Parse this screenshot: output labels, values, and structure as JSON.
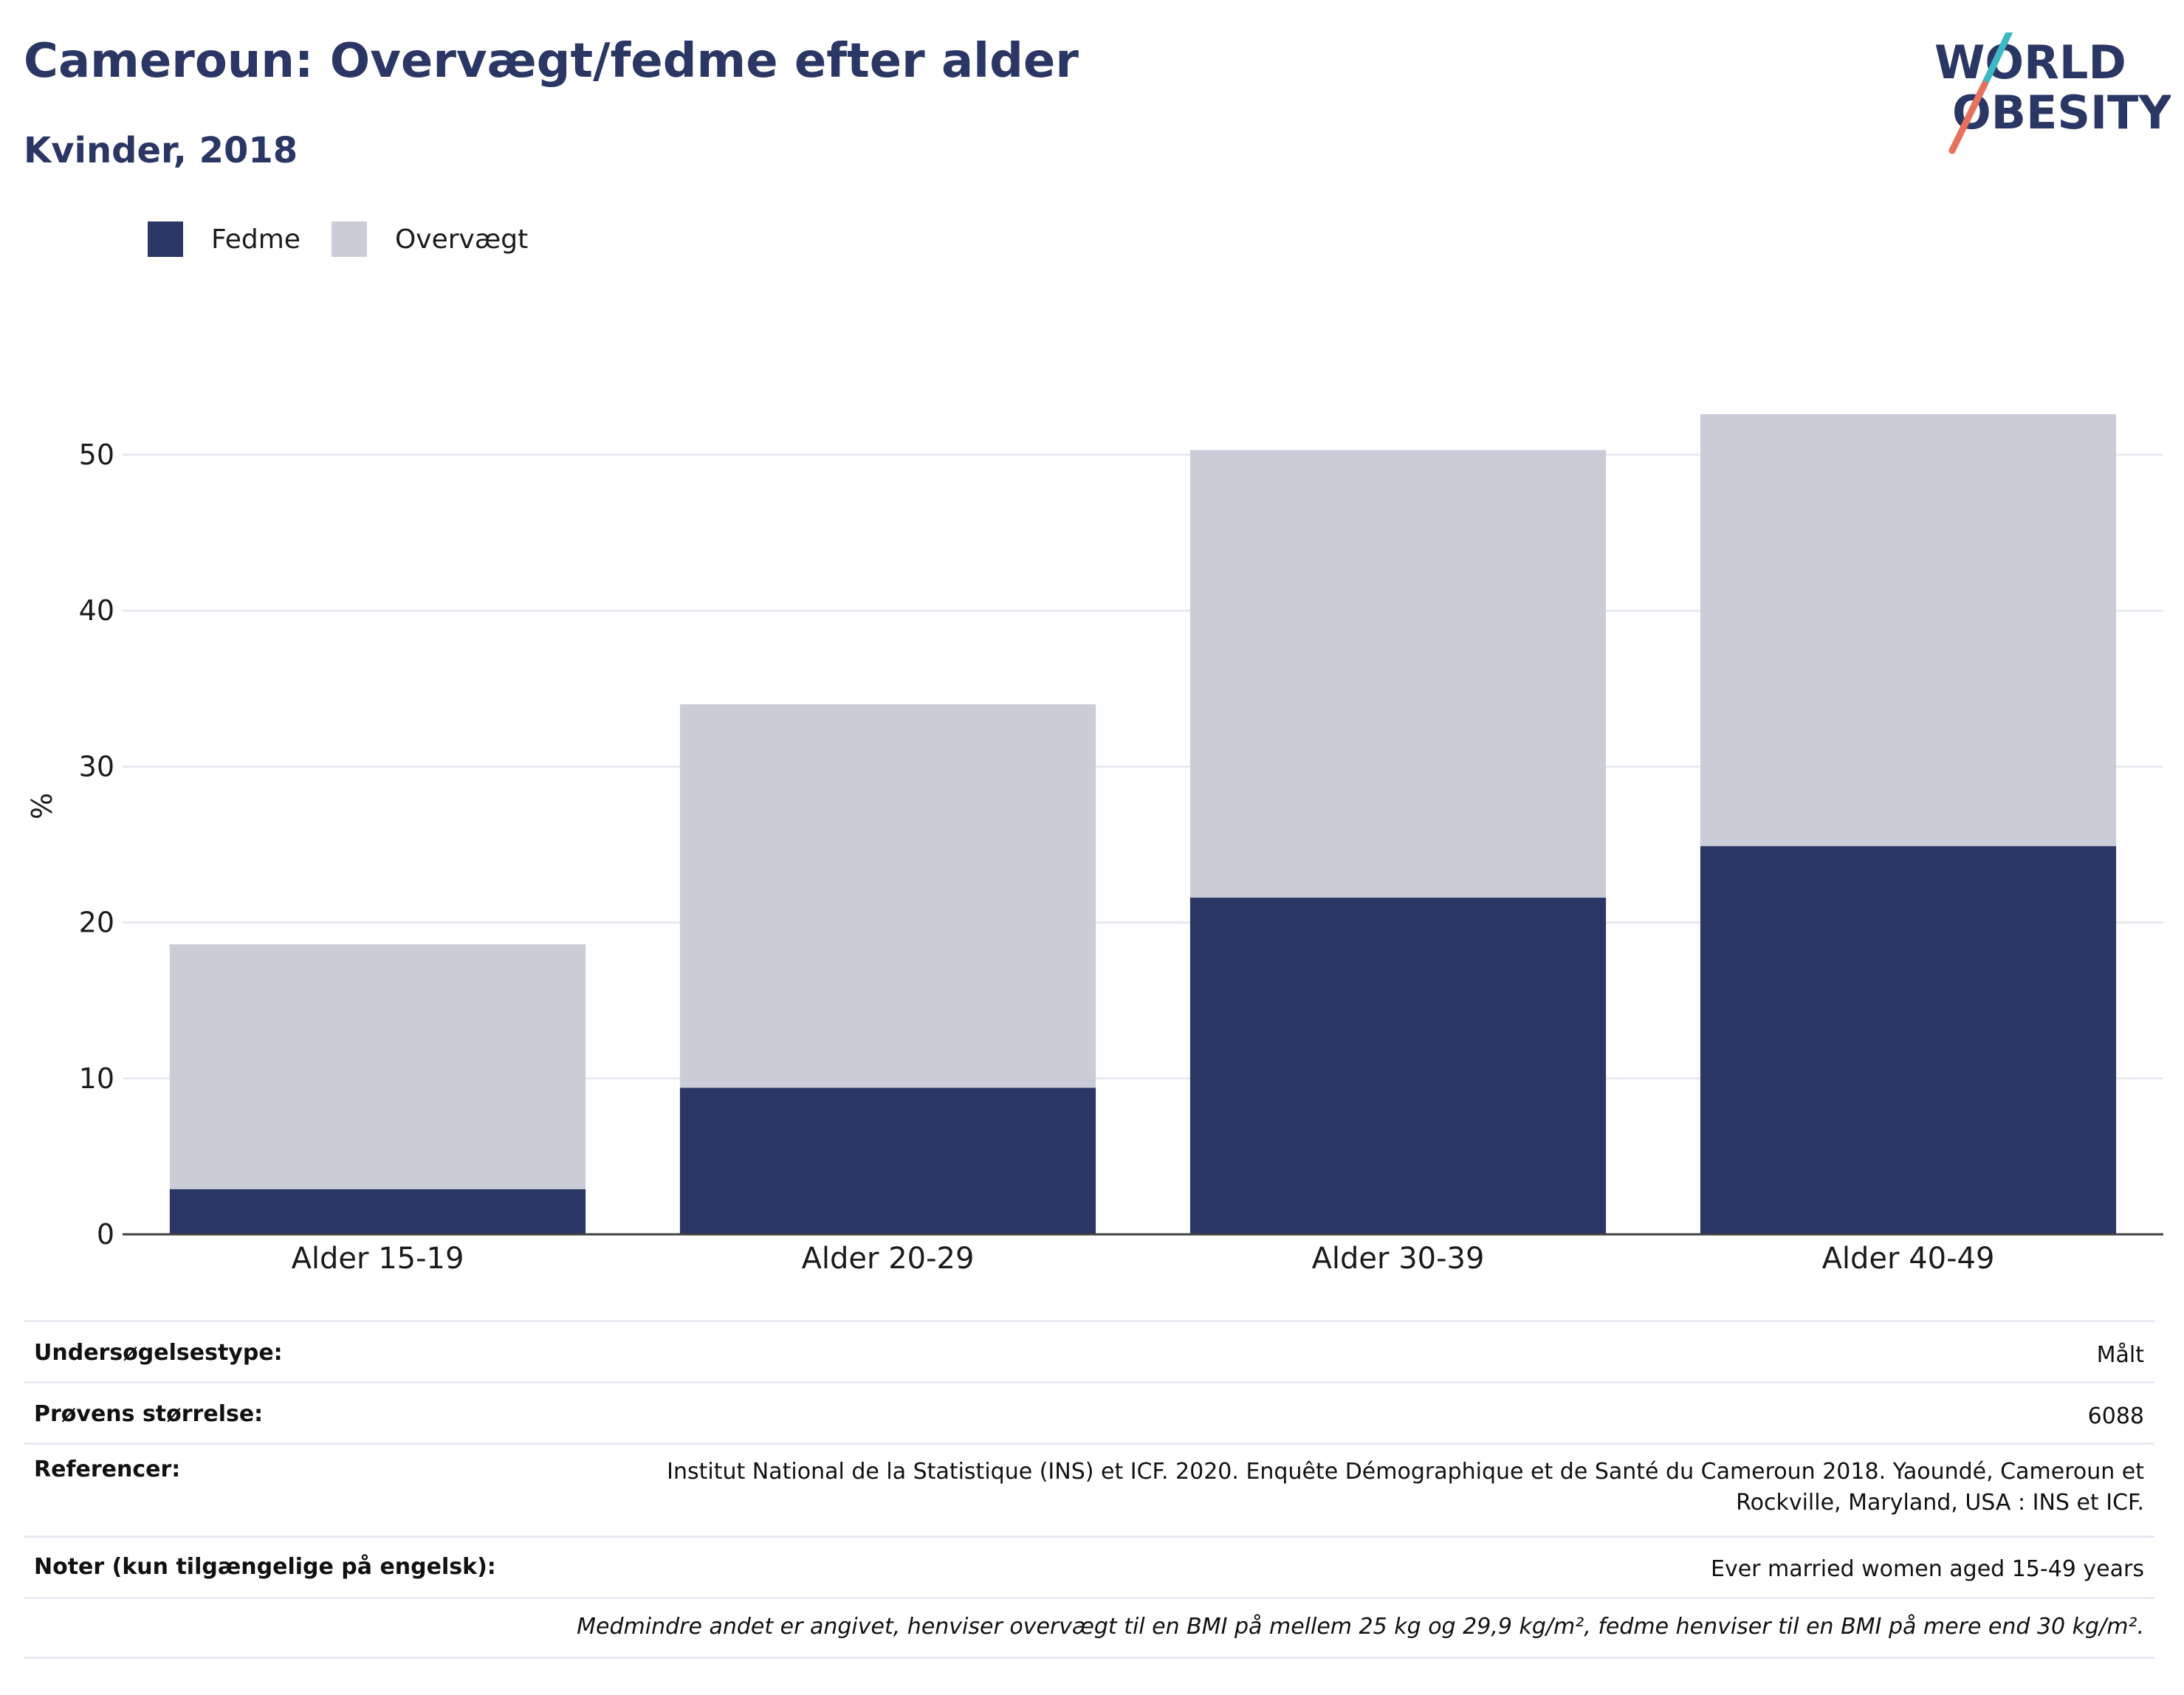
{
  "header": {
    "title": "Cameroun: Overvægt/fedme efter alder",
    "subtitle": "Kvinder, 2018"
  },
  "logo": {
    "line1": "WORLD",
    "line2": "OBESITY",
    "colors": {
      "text": "#2a3664",
      "slash_top": "#3bb8c3",
      "slash_bottom": "#e8705e"
    }
  },
  "legend": {
    "items": [
      {
        "label": "Fedme",
        "color": "#2a3664"
      },
      {
        "label": "Overvægt",
        "color": "#cacdd8"
      }
    ]
  },
  "chart_data": {
    "type": "bar",
    "stacked": true,
    "title": "Cameroun: Overvægt/fedme efter alder",
    "subtitle": "Kvinder, 2018",
    "xlabel": "",
    "ylabel": "%",
    "ylim": [
      0,
      54
    ],
    "yticks": [
      0,
      10,
      20,
      30,
      40,
      50
    ],
    "grid": true,
    "legend_position": "top-left",
    "categories": [
      "Alder 15-19",
      "Alder 20-29",
      "Alder 30-39",
      "Alder 40-49"
    ],
    "series": [
      {
        "name": "Fedme",
        "color": "#2a3664",
        "values": [
          2.9,
          9.4,
          21.6,
          24.9
        ]
      },
      {
        "name": "Overvægt",
        "color": "#cacdd8",
        "values": [
          15.7,
          24.6,
          28.7,
          27.7
        ]
      }
    ]
  },
  "info": {
    "rows": [
      {
        "key": "Undersøgelsestype:",
        "value": "Målt"
      },
      {
        "key": "Prøvens størrelse:",
        "value": "6088"
      },
      {
        "key": "Referencer:",
        "value": "Institut National de la Statistique (INS) et ICF. 2020. Enquête Démographique et de Santé du Cameroun 2018. Yaoundé, Cameroun et",
        "value2": "Rockville, Maryland, USA : INS et ICF."
      },
      {
        "key": "Noter (kun tilgængelige på engelsk):",
        "value": "Ever married women aged 15-49 years"
      }
    ],
    "footnote": "Medmindre andet er angivet, henviser overvægt til en BMI på mellem 25 kg og 29,9 kg/m², fedme henviser til en BMI på mere end 30 kg/m²."
  }
}
